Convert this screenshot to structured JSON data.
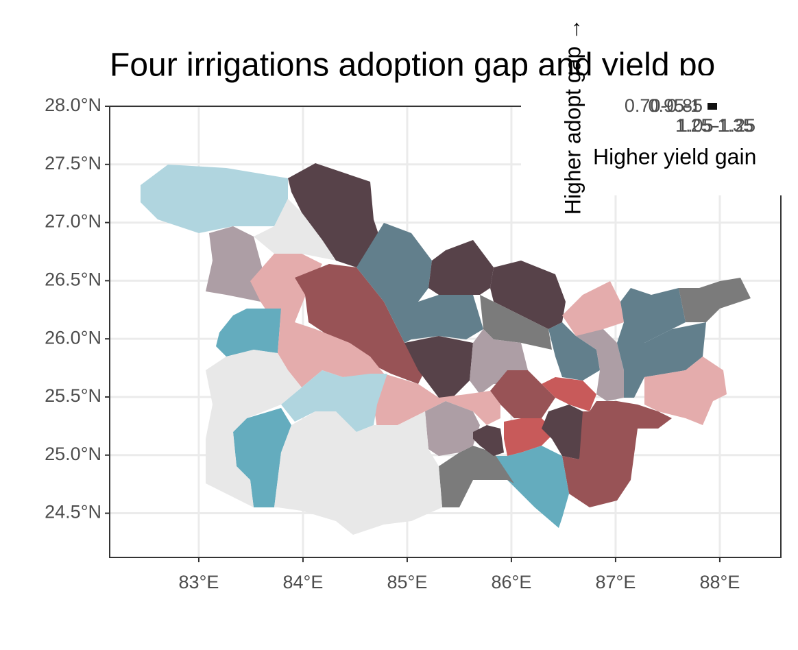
{
  "title": "Four irrigations adoption gap and yield po",
  "axes": {
    "xlim": [
      82.145,
      88.586
    ],
    "ylim": [
      24.12,
      28.0
    ],
    "xticks": [
      {
        "value": 83,
        "label": "83°E"
      },
      {
        "value": 84,
        "label": "84°E"
      },
      {
        "value": 85,
        "label": "85°E"
      },
      {
        "value": 86,
        "label": "86°E"
      },
      {
        "value": 87,
        "label": "87°E"
      },
      {
        "value": 88,
        "label": "88°E"
      }
    ],
    "yticks": [
      {
        "value": 24.5,
        "label": "24.5°N"
      },
      {
        "value": 25,
        "label": "25.0°N"
      },
      {
        "value": 25.5,
        "label": "25.5°N"
      },
      {
        "value": 26,
        "label": "26.0°N"
      },
      {
        "value": 26.5,
        "label": "26.5°N"
      },
      {
        "value": 27,
        "label": "27.0°N"
      },
      {
        "value": 27.5,
        "label": "27.5°N"
      },
      {
        "value": 28,
        "label": "28.0°N"
      }
    ]
  },
  "legend": {
    "title_y": "Higher adopt gap →",
    "title_x": "Higher yield gain",
    "y_labels": [
      "0.70-0.85",
      "0.95-1"
    ],
    "x_labels": [
      "1.05-1.25",
      "1.25-1.35"
    ]
  }
}
